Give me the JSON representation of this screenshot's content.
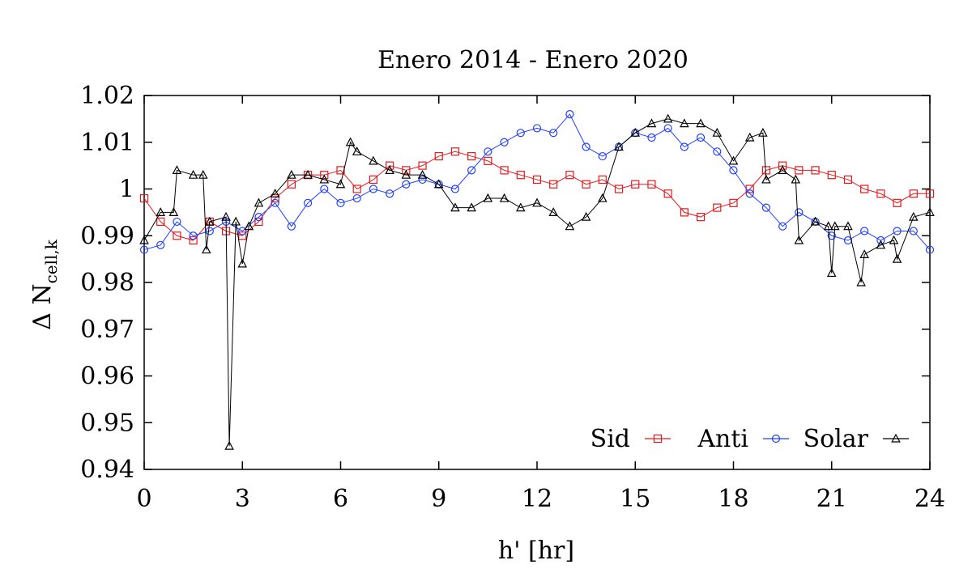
{
  "chart_data": {
    "type": "scatter",
    "title": "Enero 2014 - Enero 2020",
    "xlabel": "h' [hr]",
    "ylabel": {
      "main": "Δ N",
      "sub": "cell,k"
    },
    "xlim": [
      0,
      24
    ],
    "ylim": [
      0.94,
      1.02
    ],
    "xticks": [
      0,
      3,
      6,
      9,
      12,
      15,
      18,
      21,
      24
    ],
    "xtick_labels": [
      "0",
      "3",
      "6",
      "9",
      "12",
      "15",
      "18",
      "21",
      "24"
    ],
    "yticks": [
      0.94,
      0.95,
      0.96,
      0.97,
      0.98,
      0.99,
      1.0,
      1.01,
      1.02
    ],
    "ytick_labels": [
      "0.94",
      "0.95",
      "0.96",
      "0.97",
      "0.98",
      "0.99",
      "1",
      "1.01",
      "1.02"
    ],
    "grid": false,
    "legend_position": "bottom-right",
    "series": [
      {
        "name": "Sid",
        "color": "#e41a1c",
        "marker": "square",
        "x": [
          0,
          0.5,
          1,
          1.5,
          2,
          2.5,
          3,
          3.5,
          4,
          4.5,
          5,
          5.5,
          6,
          6.5,
          7,
          7.5,
          8,
          8.5,
          9,
          9.5,
          10,
          10.5,
          11,
          11.5,
          12,
          12.5,
          13,
          13.5,
          14,
          14.5,
          15,
          15.5,
          16,
          16.5,
          17,
          17.5,
          18,
          18.5,
          19,
          19.5,
          20,
          20.5,
          21,
          21.5,
          22,
          22.5,
          23,
          23.5,
          24
        ],
        "y": [
          0.998,
          0.993,
          0.99,
          0.989,
          0.993,
          0.991,
          0.99,
          0.993,
          0.998,
          1.001,
          1.003,
          1.003,
          1.004,
          1.0,
          1.002,
          1.005,
          1.004,
          1.005,
          1.007,
          1.008,
          1.007,
          1.006,
          1.004,
          1.003,
          1.002,
          1.001,
          1.003,
          1.001,
          1.002,
          1.0,
          1.001,
          1.001,
          0.999,
          0.995,
          0.994,
          0.996,
          0.997,
          1.0,
          1.004,
          1.005,
          1.004,
          1.004,
          1.003,
          1.002,
          1.0,
          0.999,
          0.997,
          0.999,
          0.999
        ]
      },
      {
        "name": "Anti",
        "color": "#1f3fff",
        "marker": "circle",
        "x": [
          0,
          0.5,
          1,
          1.5,
          2,
          2.5,
          3,
          3.5,
          4,
          4.5,
          5,
          5.5,
          6,
          6.5,
          7,
          7.5,
          8,
          8.5,
          9,
          9.5,
          10,
          10.5,
          11,
          11.5,
          12,
          12.5,
          13,
          13.5,
          14,
          14.5,
          15,
          15.5,
          16,
          16.5,
          17,
          17.5,
          18,
          18.5,
          19,
          19.5,
          20,
          20.5,
          21,
          21.5,
          22,
          22.5,
          23,
          23.5,
          24
        ],
        "y": [
          0.987,
          0.988,
          0.993,
          0.99,
          0.991,
          0.993,
          0.991,
          0.994,
          0.997,
          0.992,
          0.997,
          1.0,
          0.997,
          0.998,
          1.0,
          0.999,
          1.001,
          1.002,
          1.001,
          1.0,
          1.004,
          1.008,
          1.01,
          1.012,
          1.013,
          1.012,
          1.016,
          1.009,
          1.007,
          1.009,
          1.012,
          1.011,
          1.013,
          1.009,
          1.011,
          1.008,
          1.004,
          0.999,
          0.996,
          0.992,
          0.995,
          0.993,
          0.99,
          0.989,
          0.991,
          0.989,
          0.991,
          0.991,
          0.987
        ]
      },
      {
        "name": "Solar",
        "color": "#000000",
        "marker": "triangle",
        "x": [
          0,
          0.5,
          0.9,
          1,
          1.5,
          1.8,
          1.9,
          2,
          2.5,
          2.6,
          2.8,
          3,
          3.2,
          3.5,
          4,
          4.5,
          5,
          5.5,
          6,
          6.3,
          6.5,
          7,
          7.5,
          8,
          8.5,
          9,
          9.5,
          10,
          10.5,
          11,
          11.5,
          12,
          12.5,
          13,
          13.5,
          14,
          14.5,
          15,
          15.5,
          16,
          16.5,
          17,
          17.5,
          18,
          18.5,
          18.9,
          19,
          19.5,
          19.9,
          20,
          20.5,
          20.9,
          21,
          21.1,
          21.5,
          21.9,
          22,
          22.5,
          22.9,
          23,
          23.5,
          24
        ],
        "y": [
          0.989,
          0.995,
          0.995,
          1.004,
          1.003,
          1.003,
          0.987,
          0.993,
          0.994,
          0.945,
          0.993,
          0.984,
          0.992,
          0.997,
          0.999,
          1.003,
          1.003,
          1.002,
          1.001,
          1.01,
          1.008,
          1.006,
          1.004,
          1.003,
          1.003,
          1.001,
          0.996,
          0.996,
          0.998,
          0.998,
          0.996,
          0.997,
          0.995,
          0.992,
          0.994,
          0.998,
          1.009,
          1.012,
          1.014,
          1.015,
          1.014,
          1.014,
          1.012,
          1.006,
          1.011,
          1.012,
          1.002,
          1.004,
          1.002,
          0.989,
          0.993,
          0.992,
          0.982,
          0.992,
          0.992,
          0.98,
          0.986,
          0.988,
          0.989,
          0.985,
          0.994,
          0.995
        ]
      }
    ]
  }
}
